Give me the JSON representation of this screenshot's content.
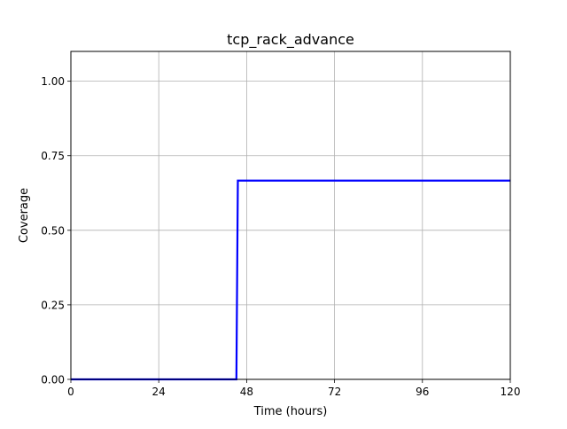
{
  "chart_data": {
    "type": "line",
    "title": "tcp_rack_advance",
    "xlabel": "Time (hours)",
    "ylabel": "Coverage",
    "xlim": [
      0,
      120
    ],
    "ylim": [
      0,
      1.1
    ],
    "xticks": [
      0,
      24,
      48,
      72,
      96,
      120
    ],
    "xtick_labels": [
      "0",
      "24",
      "48",
      "72",
      "96",
      "120"
    ],
    "yticks": [
      0,
      0.25,
      0.5,
      0.75,
      1.0
    ],
    "ytick_labels": [
      "0.00",
      "0.25",
      "0.50",
      "0.75",
      "1.00"
    ],
    "grid": true,
    "series": [
      {
        "color": "#0000ff",
        "x": [
          0,
          45.2,
          45.6,
          120
        ],
        "y": [
          0,
          0,
          0.6667,
          0.6667
        ]
      }
    ]
  }
}
